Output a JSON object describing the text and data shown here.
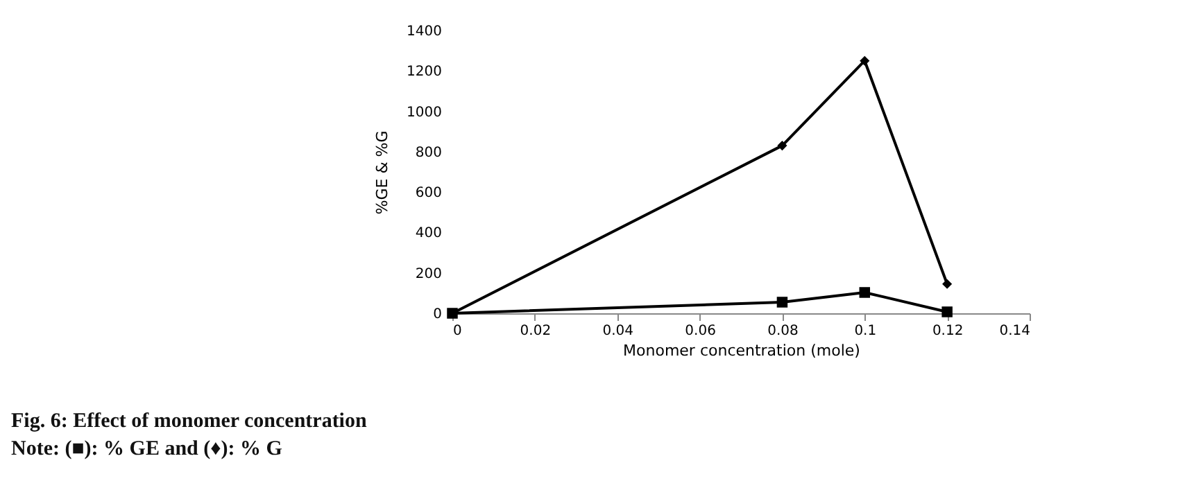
{
  "chart_data": {
    "type": "line",
    "xlabel": "Monomer concentration (mole)",
    "ylabel": "%GE & %G",
    "annotations": [
      "Fig. 6: Effect of monomer concentration",
      "Note: (■): % GE and (♦): % G"
    ],
    "x": [
      0,
      0.08,
      0.1,
      0.12
    ],
    "series": [
      {
        "color": "#000000",
        "marker": "square",
        "values": [
          0,
          55,
          103,
          7
        ]
      },
      {
        "color": "#000000",
        "marker": "diamond",
        "values": [
          0,
          830,
          1250,
          145
        ]
      }
    ],
    "xlim": [
      0,
      0.14
    ],
    "xticks": [
      0,
      0.02,
      0.04,
      0.06,
      0.08,
      0.1,
      0.12,
      0.14
    ],
    "ylim": [
      0,
      1400
    ],
    "yticks": [
      0,
      200,
      400,
      600,
      800,
      1000,
      1200,
      1400
    ],
    "line_style": "solid"
  }
}
